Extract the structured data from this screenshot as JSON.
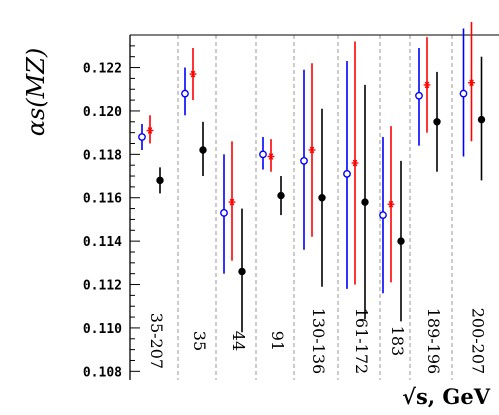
{
  "chart_data": {
    "type": "scatter",
    "ylabel": "αs(MZ)",
    "xlabel": "√s,  GeV",
    "ylim": [
      0.1076,
      0.1235
    ],
    "yticks": [
      0.108,
      0.11,
      0.112,
      0.114,
      0.116,
      0.118,
      0.12,
      0.122
    ],
    "ytick_labels": [
      "0.108",
      "0.110",
      "0.112",
      "0.114",
      "0.116",
      "0.118",
      "0.120",
      "0.122"
    ],
    "categories": [
      "35-207",
      "35",
      "44",
      "91",
      "130-136",
      "161-172",
      "183",
      "189-196",
      "200-207"
    ],
    "grid": "vertical dashed separators between energy groups",
    "series": [
      {
        "marker": "open-circle",
        "color": "#0000ff",
        "points": [
          {
            "category": "35-207",
            "value": 0.1188,
            "low": 0.1182,
            "high": 0.1194
          },
          {
            "category": "35",
            "value": 0.1208,
            "low": 0.1198,
            "high": 0.122
          },
          {
            "category": "44",
            "value": 0.1153,
            "low": 0.1125,
            "high": 0.118
          },
          {
            "category": "91",
            "value": 0.118,
            "low": 0.1173,
            "high": 0.1188
          },
          {
            "category": "130-136",
            "value": 0.1177,
            "low": 0.1136,
            "high": 0.1219
          },
          {
            "category": "161-172",
            "value": 0.1171,
            "low": 0.1118,
            "high": 0.1223
          },
          {
            "category": "183",
            "value": 0.1152,
            "low": 0.1116,
            "high": 0.1188
          },
          {
            "category": "189-196",
            "value": 0.1207,
            "low": 0.1184,
            "high": 0.1229
          },
          {
            "category": "200-207",
            "value": 0.1208,
            "low": 0.1179,
            "high": 0.1238
          }
        ]
      },
      {
        "marker": "asterisk",
        "color": "#ff0000",
        "points": [
          {
            "category": "35-207",
            "value": 0.1191,
            "low": 0.1185,
            "high": 0.1198
          },
          {
            "category": "35",
            "value": 0.1217,
            "low": 0.1205,
            "high": 0.1229
          },
          {
            "category": "44",
            "value": 0.1158,
            "low": 0.1131,
            "high": 0.1186
          },
          {
            "category": "91",
            "value": 0.1179,
            "low": 0.1172,
            "high": 0.1187
          },
          {
            "category": "130-136",
            "value": 0.1182,
            "low": 0.1142,
            "high": 0.1222
          },
          {
            "category": "161-172",
            "value": 0.1176,
            "low": 0.112,
            "high": 0.1232
          },
          {
            "category": "183",
            "value": 0.1157,
            "low": 0.1121,
            "high": 0.1193
          },
          {
            "category": "189-196",
            "value": 0.1212,
            "low": 0.119,
            "high": 0.1234
          },
          {
            "category": "200-207",
            "value": 0.1213,
            "low": 0.1186,
            "high": 0.1241
          }
        ]
      },
      {
        "marker": "filled-circle",
        "color": "#000000",
        "points": [
          {
            "category": "35-207",
            "value": 0.1168,
            "low": 0.1162,
            "high": 0.1174
          },
          {
            "category": "35",
            "value": 0.1182,
            "low": 0.117,
            "high": 0.1195
          },
          {
            "category": "44",
            "value": 0.1126,
            "low": 0.1098,
            "high": 0.1155
          },
          {
            "category": "91",
            "value": 0.1161,
            "low": 0.1152,
            "high": 0.117
          },
          {
            "category": "130-136",
            "value": 0.116,
            "low": 0.1119,
            "high": 0.1201
          },
          {
            "category": "161-172",
            "value": 0.1158,
            "low": 0.1104,
            "high": 0.1212
          },
          {
            "category": "183",
            "value": 0.114,
            "low": 0.1103,
            "high": 0.1177
          },
          {
            "category": "189-196",
            "value": 0.1195,
            "low": 0.1172,
            "high": 0.1218
          },
          {
            "category": "200-207",
            "value": 0.1196,
            "low": 0.1168,
            "high": 0.1225
          }
        ]
      }
    ]
  }
}
